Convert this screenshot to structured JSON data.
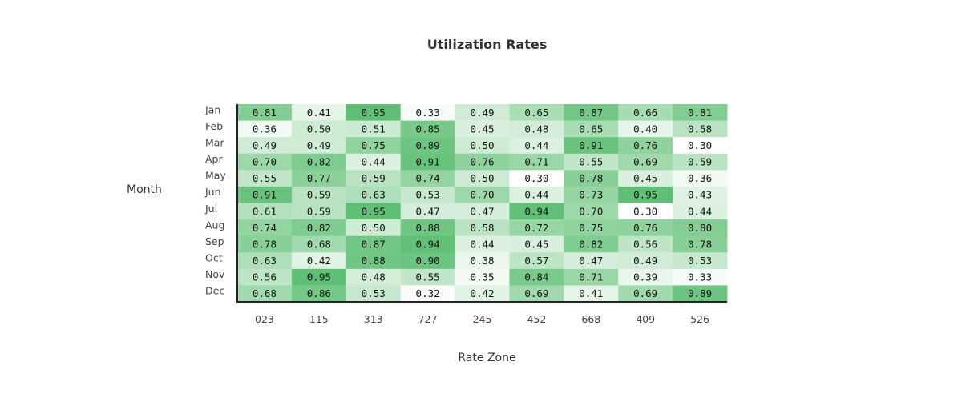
{
  "chart_data": {
    "type": "heatmap",
    "title": "Utilization Rates",
    "xlabel": "Rate Zone",
    "ylabel": "Month",
    "x_categories": [
      "023",
      "115",
      "313",
      "727",
      "245",
      "452",
      "668",
      "409",
      "526"
    ],
    "y_categories": [
      "Jan",
      "Feb",
      "Mar",
      "Apr",
      "May",
      "Jun",
      "Jul",
      "Aug",
      "Sep",
      "Oct",
      "Nov",
      "Dec"
    ],
    "values": [
      [
        0.81,
        0.41,
        0.95,
        0.33,
        0.49,
        0.65,
        0.87,
        0.66,
        0.81
      ],
      [
        0.36,
        0.5,
        0.51,
        0.85,
        0.45,
        0.48,
        0.65,
        0.4,
        0.58
      ],
      [
        0.49,
        0.49,
        0.75,
        0.89,
        0.5,
        0.44,
        0.91,
        0.76,
        0.3
      ],
      [
        0.7,
        0.82,
        0.44,
        0.91,
        0.76,
        0.71,
        0.55,
        0.69,
        0.59
      ],
      [
        0.55,
        0.77,
        0.59,
        0.74,
        0.5,
        0.3,
        0.78,
        0.45,
        0.36
      ],
      [
        0.91,
        0.59,
        0.63,
        0.53,
        0.7,
        0.44,
        0.73,
        0.95,
        0.43
      ],
      [
        0.61,
        0.59,
        0.95,
        0.47,
        0.47,
        0.94,
        0.7,
        0.3,
        0.44
      ],
      [
        0.74,
        0.82,
        0.5,
        0.88,
        0.58,
        0.72,
        0.75,
        0.76,
        0.8
      ],
      [
        0.78,
        0.68,
        0.87,
        0.94,
        0.44,
        0.45,
        0.82,
        0.56,
        0.78
      ],
      [
        0.63,
        0.42,
        0.88,
        0.9,
        0.38,
        0.57,
        0.47,
        0.49,
        0.53
      ],
      [
        0.56,
        0.95,
        0.48,
        0.55,
        0.35,
        0.84,
        0.71,
        0.39,
        0.33
      ],
      [
        0.68,
        0.86,
        0.53,
        0.32,
        0.42,
        0.69,
        0.41,
        0.69,
        0.89
      ]
    ],
    "value_format": "2 decimals",
    "colorscale": {
      "low": "#ffffff",
      "high": "#5fbf74"
    },
    "value_range": [
      0.3,
      0.95
    ],
    "grid": false,
    "legend": "none"
  }
}
